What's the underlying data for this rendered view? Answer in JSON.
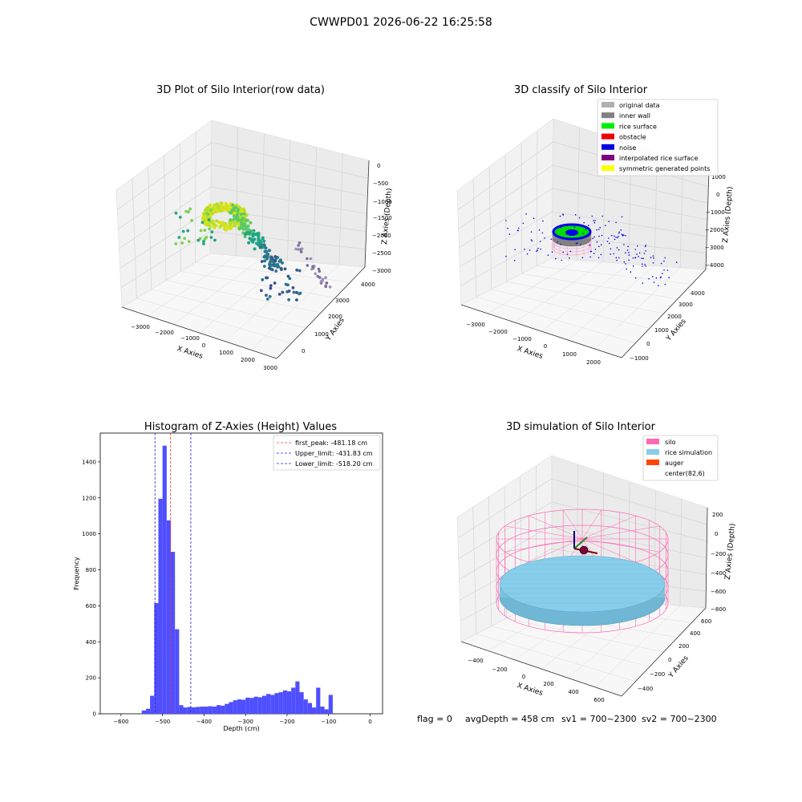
{
  "figure": {
    "suptitle": "CWWPD01 2026-06-22 16:25:58",
    "footer": {
      "flag": "flag = 0",
      "avg_depth": "avgDepth = 458 cm",
      "sv1": "sv1 = 700~2300",
      "sv2": "sv2 = 700~2300"
    }
  },
  "colors": {
    "hist_bar": "#4f4fff",
    "peak_line": "#ff3333",
    "limit_line": "#2222cc",
    "pane": "#f2f2f2",
    "silo": "#ff69b4",
    "rice": "#87ceeb",
    "auger": "#ff4500",
    "noise": "#0000ee",
    "rice_surface": "#00ee00",
    "inner_wall": "#808080"
  },
  "chart_data": [
    {
      "id": "raw",
      "type": "scatter",
      "projection": "3d",
      "title": "3D Plot of Silo Interior(row data)",
      "xlabel": "X Axies",
      "ylabel": "Y Axies",
      "zlabel": "Z Axies (Depth)",
      "xticks": [
        "−3000",
        "−2000",
        "−1000",
        "0",
        "1000",
        "2000",
        "3000"
      ],
      "yticks": [
        "0",
        "1000",
        "2000",
        "3000",
        "4000"
      ],
      "zticks": [
        "0",
        "−500",
        "−1000",
        "−1500",
        "−2000",
        "−2500",
        "−3000"
      ],
      "xlim": [
        -3500,
        3000
      ],
      "ylim": [
        -500,
        4500
      ],
      "zlim": [
        -3000,
        0
      ],
      "colormap": "viridis (by depth)"
    },
    {
      "id": "classify",
      "type": "scatter",
      "projection": "3d",
      "title": "3D classify of Silo Interior",
      "xlabel": "X Axies",
      "ylabel": "Y Axies",
      "zlabel": "Z Axies (Depth)",
      "xticks": [
        "−3000",
        "−2000",
        "−1000",
        "0",
        "1000",
        "2000"
      ],
      "yticks": [
        "−1000",
        "0",
        "1000",
        "2000",
        "3000",
        "4000"
      ],
      "zticks": [
        "1000",
        "0",
        "−1000",
        "−2000",
        "−3000",
        "−4000"
      ],
      "legend_position": "top-right",
      "legend": [
        {
          "label": "original data",
          "color": "#b0b0b0"
        },
        {
          "label": "inner wall",
          "color": "#808080"
        },
        {
          "label": "rice surface",
          "color": "#00ee00"
        },
        {
          "label": "obstacle",
          "color": "#ee0000"
        },
        {
          "label": "noise",
          "color": "#0000dd"
        },
        {
          "label": "interpolated rice surface",
          "color": "#800080"
        },
        {
          "label": "symmetric generated points",
          "color": "#ffff00"
        }
      ]
    },
    {
      "id": "hist",
      "type": "bar",
      "title": "Histogram of Z-Axies (Height) Values",
      "xlabel": "Depth (cm)",
      "ylabel": "Frequency",
      "xlim": [
        -650,
        30
      ],
      "ylim": [
        0,
        1560
      ],
      "xticks": [
        -600,
        -500,
        -400,
        -300,
        -200,
        -100,
        0
      ],
      "yticks": [
        0,
        200,
        400,
        600,
        800,
        1000,
        1200,
        1400
      ],
      "bin_width": 10,
      "bins": [
        [
          -550,
          18
        ],
        [
          -540,
          28
        ],
        [
          -530,
          100
        ],
        [
          -520,
          615
        ],
        [
          -510,
          1195
        ],
        [
          -500,
          1490
        ],
        [
          -490,
          1075
        ],
        [
          -480,
          900
        ],
        [
          -470,
          470
        ],
        [
          -460,
          48
        ],
        [
          -450,
          35
        ],
        [
          -440,
          38
        ],
        [
          -430,
          36
        ],
        [
          -420,
          38
        ],
        [
          -410,
          40
        ],
        [
          -400,
          40
        ],
        [
          -390,
          42
        ],
        [
          -380,
          40
        ],
        [
          -370,
          48
        ],
        [
          -360,
          45
        ],
        [
          -350,
          55
        ],
        [
          -340,
          65
        ],
        [
          -330,
          75
        ],
        [
          -320,
          80
        ],
        [
          -310,
          78
        ],
        [
          -300,
          90
        ],
        [
          -290,
          88
        ],
        [
          -280,
          95
        ],
        [
          -270,
          92
        ],
        [
          -260,
          100
        ],
        [
          -250,
          110
        ],
        [
          -240,
          105
        ],
        [
          -230,
          115
        ],
        [
          -220,
          120
        ],
        [
          -210,
          130
        ],
        [
          -200,
          125
        ],
        [
          -190,
          145
        ],
        [
          -180,
          180
        ],
        [
          -170,
          120
        ],
        [
          -160,
          80
        ],
        [
          -150,
          60
        ],
        [
          -140,
          35
        ],
        [
          -130,
          145
        ],
        [
          -120,
          40
        ],
        [
          -110,
          25
        ],
        [
          -100,
          105
        ],
        [
          -90,
          0
        ],
        [
          -80,
          0
        ]
      ],
      "vlines": [
        {
          "x": -481.18,
          "label": "first_peak: -481.18 cm",
          "style": "peak"
        },
        {
          "x": -431.83,
          "label": "Upper_limit: -431.83 cm",
          "style": "limit"
        },
        {
          "x": -518.2,
          "label": "Lower_limit: -518.20 cm",
          "style": "limit"
        }
      ],
      "legend_position": "top-right"
    },
    {
      "id": "sim",
      "type": "scatter",
      "projection": "3d",
      "title": "3D simulation of Silo Interior",
      "xlabel": "X Axies",
      "ylabel": "Y Axies",
      "zlabel": "Z Axies (Depth)",
      "xticks": [
        "−400",
        "−200",
        "0",
        "200",
        "400",
        "600"
      ],
      "yticks": [
        "−400",
        "−200",
        "0",
        "200",
        "400",
        "600"
      ],
      "zticks": [
        "200",
        "0",
        "−200",
        "−400",
        "−600",
        "−800"
      ],
      "legend_position": "top-right",
      "legend": [
        {
          "label": "silo",
          "color": "#ff69b4"
        },
        {
          "label": "rice simulation",
          "color": "#87ceeb"
        },
        {
          "label": "auger",
          "color": "#ff4500"
        },
        {
          "label": "center(82,6)",
          "color": ""
        }
      ]
    }
  ]
}
